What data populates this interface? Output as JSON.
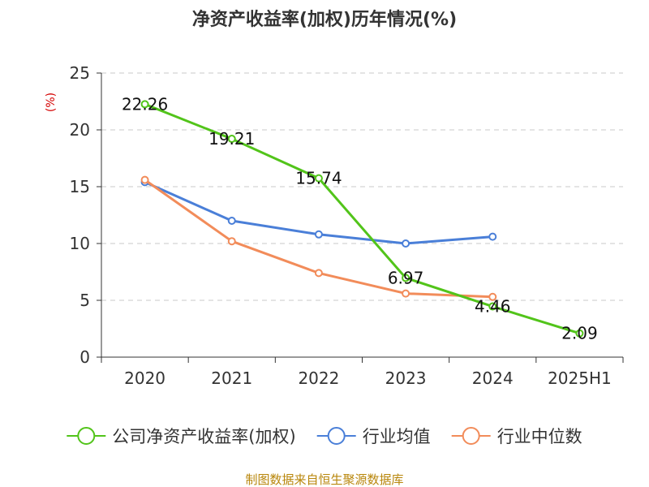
{
  "chart_data": {
    "type": "line",
    "title": "净资产收益率(加权)历年情况(%)",
    "ylabel": "(%)",
    "xlabel": "",
    "categories": [
      "2020",
      "2021",
      "2022",
      "2023",
      "2024",
      "2025H1"
    ],
    "ylim": [
      0,
      25
    ],
    "yticks": [
      0,
      5,
      10,
      15,
      20,
      25
    ],
    "grid": true,
    "legend_position": "bottom",
    "series": [
      {
        "name": "公司净资产收益率(加权)",
        "color": "#52c41a",
        "values": [
          22.26,
          19.21,
          15.74,
          6.97,
          4.46,
          2.09
        ],
        "labels": [
          "22.26",
          "19.21",
          "15.74",
          "6.97",
          "4.46",
          "2.09"
        ],
        "show_labels": true
      },
      {
        "name": "行业均值",
        "color": "#4a7fd8",
        "values": [
          15.4,
          12.0,
          10.8,
          10.0,
          10.6,
          null
        ],
        "show_labels": false
      },
      {
        "name": "行业中位数",
        "color": "#f28c5a",
        "values": [
          15.6,
          10.2,
          7.4,
          5.6,
          5.3,
          null
        ],
        "show_labels": false
      }
    ]
  },
  "footer": {
    "source": "制图数据来自恒生聚源数据库"
  }
}
